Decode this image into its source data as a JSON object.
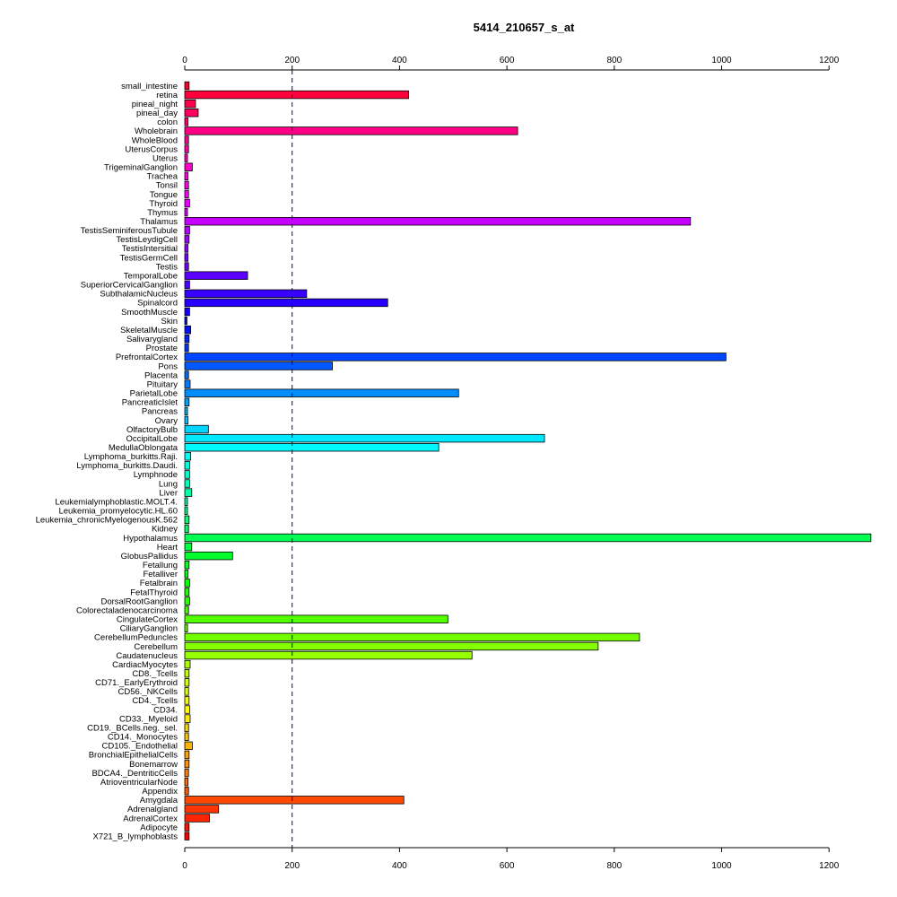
{
  "chart_data": {
    "type": "bar",
    "orientation": "horizontal",
    "title": "5414_210657_s_at",
    "xlabel": "",
    "ylabel": "",
    "xlim": [
      0,
      1280
    ],
    "x_ticks": [
      0,
      200,
      400,
      600,
      800,
      1000,
      1200
    ],
    "reference_line": 200,
    "grid": false,
    "categories": [
      "small_intestine",
      "retina",
      "pineal_night",
      "pineal_day",
      "colon",
      "Wholebrain",
      "WholeBlood",
      "UterusCorpus",
      "Uterus",
      "TrigeminalGanglion",
      "Trachea",
      "Tonsil",
      "Tongue",
      "Thyroid",
      "Thymus",
      "Thalamus",
      "TestisSeminiferousTubule",
      "TestisLeydigCell",
      "TestisIntersitial",
      "TestisGermCell",
      "Testis",
      "TemporalLobe",
      "SuperiorCervicalGanglion",
      "SubthalamicNucleus",
      "Spinalcord",
      "SmoothMuscle",
      "Skin",
      "SkeletalMuscle",
      "Salivarygland",
      "Prostate",
      "PrefrontalCortex",
      "Pons",
      "Placenta",
      "Pituitary",
      "ParietalLobe",
      "PancreaticIslet",
      "Pancreas",
      "Ovary",
      "OlfactoryBulb",
      "OccipitalLobe",
      "MedullaOblongata",
      "Lymphoma_burkitts.Raji.",
      "Lymphoma_burkitts.Daudi.",
      "Lymphnode",
      "Lung",
      "Liver",
      "Leukemialymphoblastic.MOLT.4.",
      "Leukemia_promyelocytic.HL.60",
      "Leukemia_chronicMyelogenousK.562",
      "Kidney",
      "Hypothalamus",
      "Heart",
      "GlobusPallidus",
      "Fetallung",
      "Fetalliver",
      "Fetalbrain",
      "FetalThyroid",
      "DorsalRootGanglion",
      "Colorectaladenocarcinoma",
      "CingulateCortex",
      "CiliaryGanglion",
      "CerebellumPeduncles",
      "Cerebellum",
      "Caudatenucleus",
      "CardiacMyocytes",
      "CD8._Tcells",
      "CD71._EarlyErythroid",
      "CD56._NKCells",
      "CD4._Tcells",
      "CD34.",
      "CD33._Myeloid",
      "CD19._BCells.neg._sel.",
      "CD14._Monocytes",
      "CD105._Endothelial",
      "BronchialEpithelialCells",
      "Bonemarrow",
      "BDCA4._DentriticCells",
      "AtrioventricularNode",
      "Appendix",
      "Amygdala",
      "Adrenalgland",
      "AdrenalCortex",
      "Adipocyte",
      "X721_B_lymphoblasts"
    ],
    "values": [
      8,
      417,
      20,
      25,
      6,
      620,
      7,
      7,
      5,
      14,
      6,
      7,
      7,
      9,
      5,
      942,
      9,
      8,
      6,
      6,
      7,
      117,
      9,
      227,
      378,
      9,
      4,
      11,
      8,
      7,
      1008,
      275,
      7,
      10,
      510,
      8,
      5,
      6,
      44,
      670,
      473,
      11,
      9,
      9,
      9,
      13,
      5,
      5,
      8,
      7,
      1278,
      13,
      89,
      8,
      6,
      9,
      8,
      9,
      7,
      490,
      5,
      847,
      770,
      535,
      10,
      8,
      8,
      7,
      8,
      9,
      10,
      7,
      7,
      14,
      8,
      8,
      7,
      6,
      7,
      408,
      63,
      46,
      8,
      8
    ]
  }
}
